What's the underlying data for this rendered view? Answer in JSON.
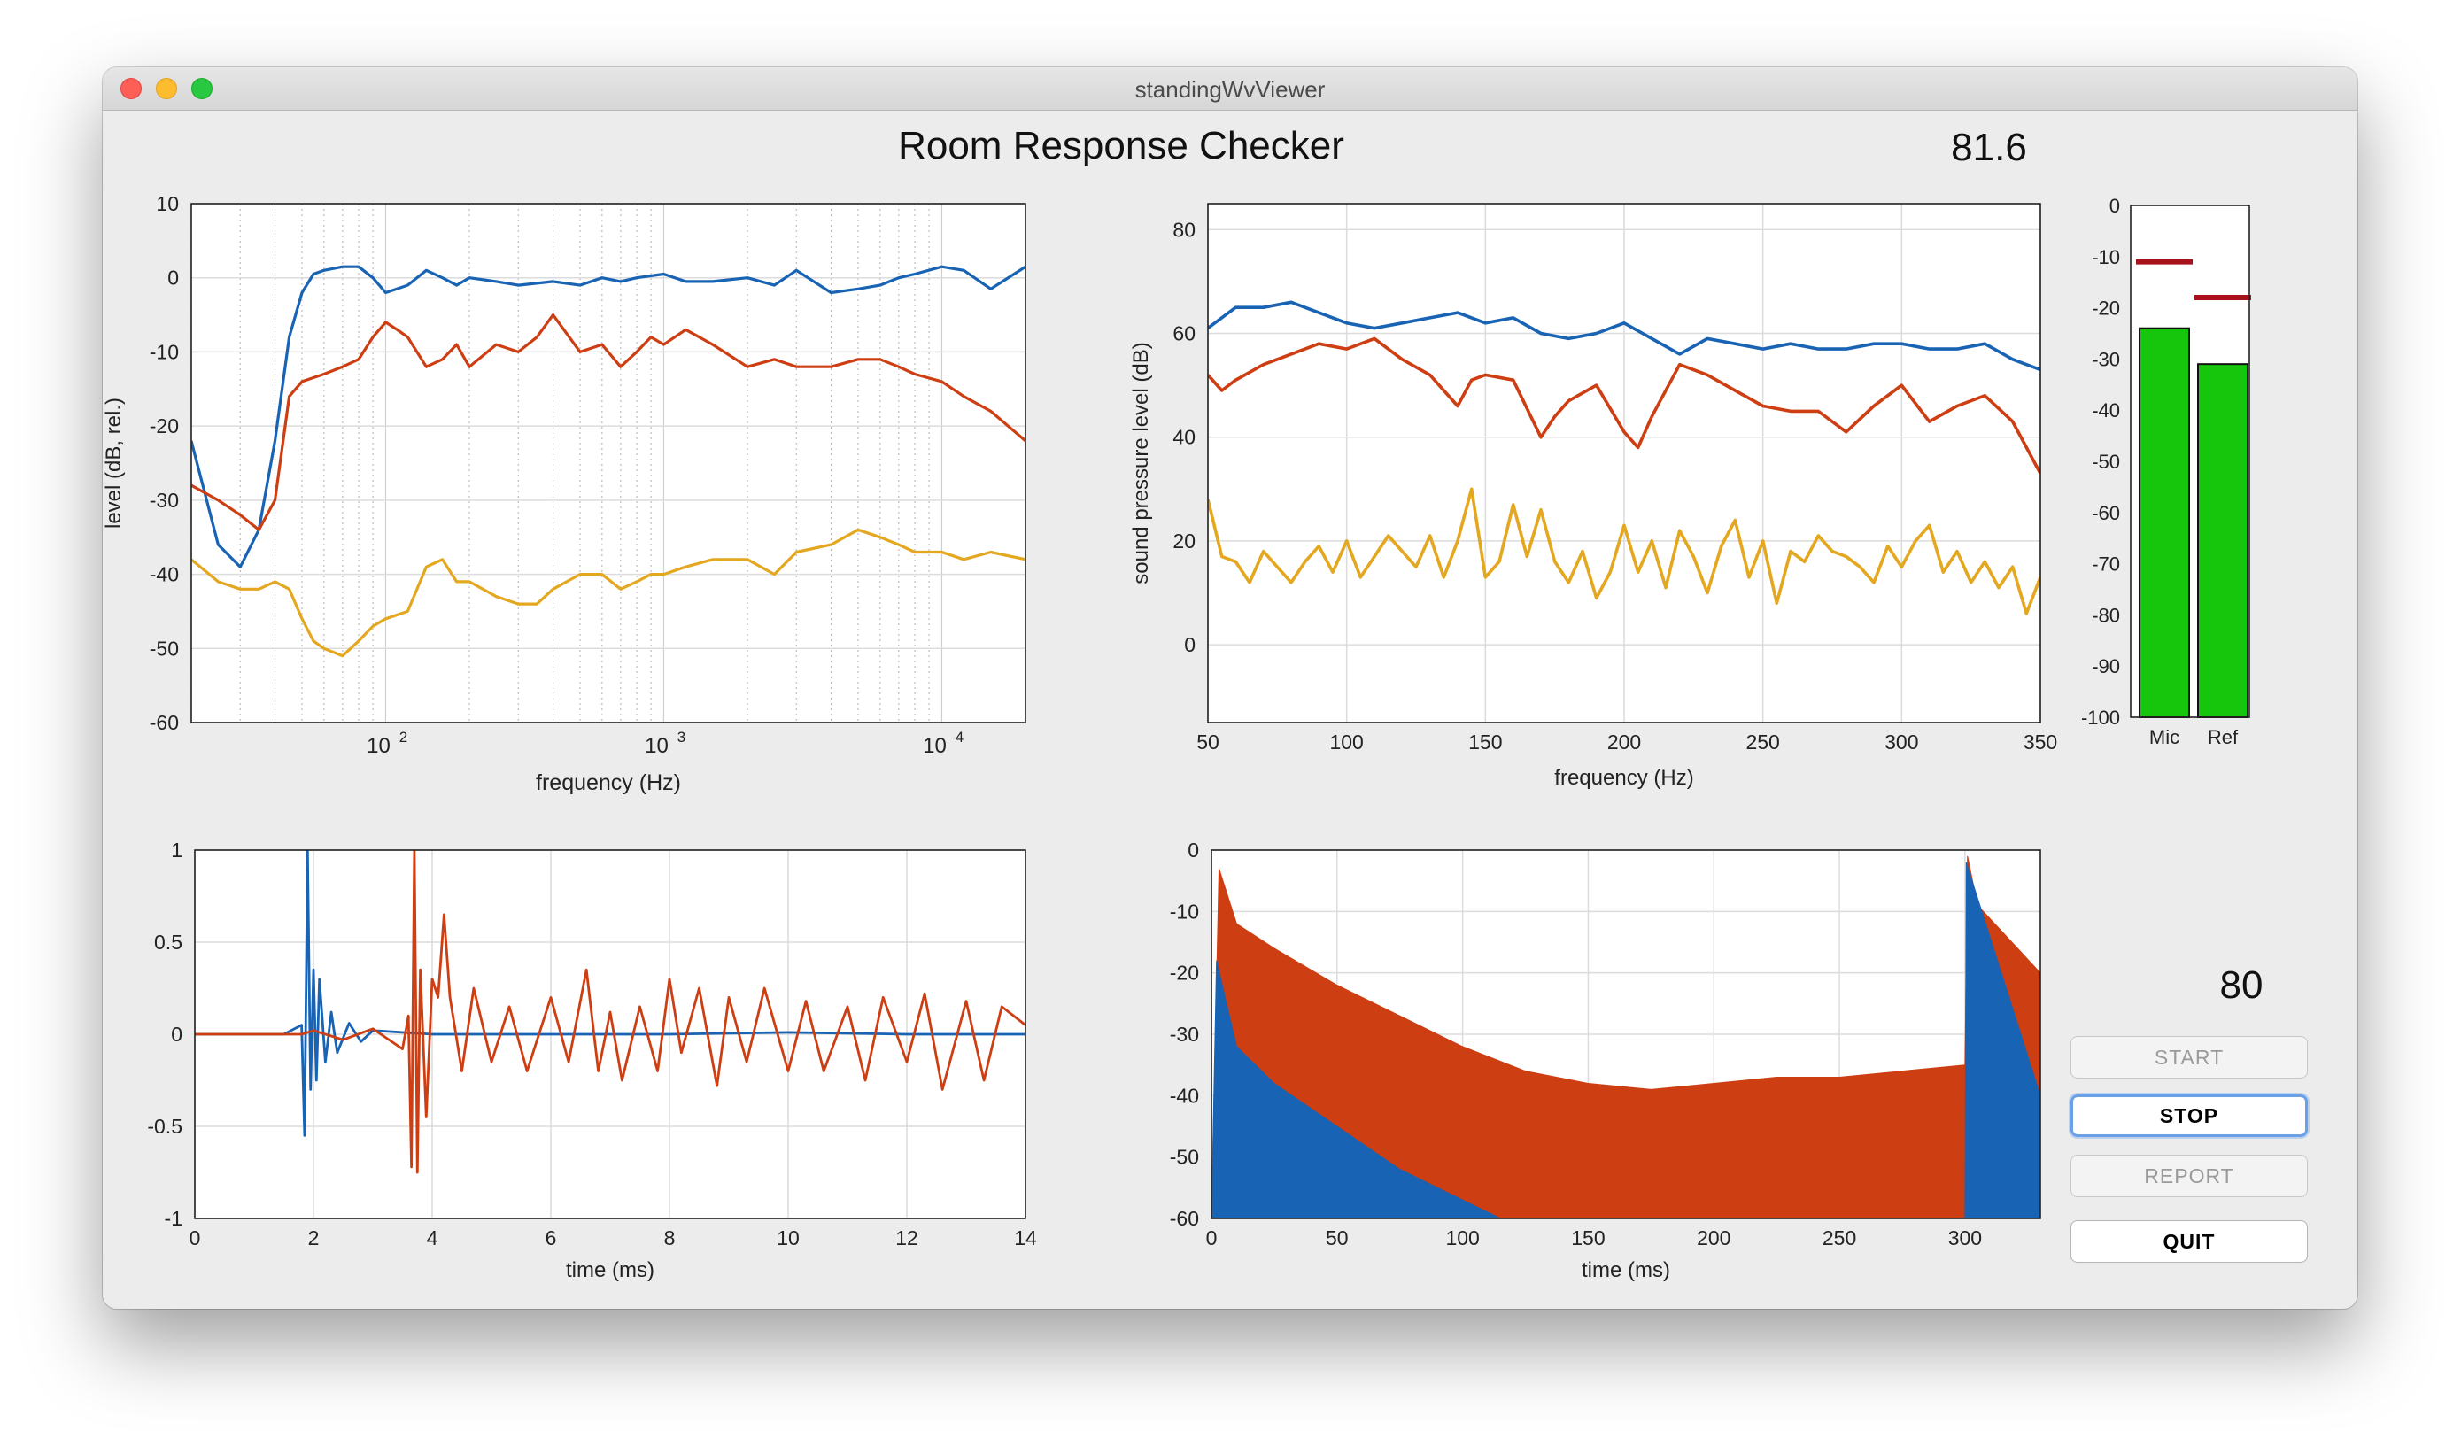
{
  "window": {
    "title": "standingWvViewer"
  },
  "app": {
    "title": "Room Response Checker",
    "level_readout": "81.6",
    "setpoint": "80"
  },
  "buttons": {
    "start": "START",
    "stop": "STOP",
    "report": "REPORT",
    "quit": "QUIT"
  },
  "colors": {
    "blue": "#1863b3",
    "red": "#cd3e13",
    "yellow": "#e4a720",
    "meter_green": "#16c60c",
    "meter_mark": "#a8121b"
  },
  "chart_data": [
    {
      "type": "line",
      "id": "frequency-response-log",
      "xlabel": "frequency (Hz)",
      "ylabel": "level (dB, rel.)",
      "xscale": "log",
      "xlim": [
        20,
        20000
      ],
      "ylim": [
        -60,
        10
      ],
      "yticks": [
        "10",
        "0",
        "-10",
        "-20",
        "-30",
        "-40",
        "-50",
        "-60"
      ],
      "xticks": [
        {
          "base": "10",
          "exp": "2"
        },
        {
          "base": "10",
          "exp": "3"
        },
        {
          "base": "10",
          "exp": "4"
        }
      ],
      "grid": true,
      "series": [
        {
          "color": "blue",
          "x": [
            20,
            25,
            30,
            35,
            40,
            45,
            50,
            55,
            60,
            70,
            80,
            90,
            100,
            120,
            140,
            160,
            180,
            200,
            250,
            300,
            400,
            500,
            600,
            700,
            800,
            1000,
            1200,
            1500,
            2000,
            2500,
            3000,
            4000,
            5000,
            6000,
            7000,
            8000,
            10000,
            12000,
            15000,
            20000
          ],
          "y": [
            -22,
            -36,
            -39,
            -34,
            -22,
            -8,
            -2,
            0.5,
            1,
            1.5,
            1.5,
            0,
            -2,
            -1,
            1,
            0,
            -1,
            0,
            -0.5,
            -1,
            -0.5,
            -1,
            0,
            -0.5,
            0,
            0.5,
            -0.5,
            -0.5,
            0,
            -1,
            1,
            -2,
            -1.5,
            -1,
            0,
            0.5,
            1.5,
            1,
            -1.5,
            1.5
          ]
        },
        {
          "color": "red",
          "x": [
            20,
            25,
            30,
            35,
            40,
            45,
            50,
            60,
            70,
            80,
            90,
            100,
            110,
            120,
            140,
            160,
            180,
            200,
            250,
            300,
            350,
            400,
            500,
            600,
            700,
            800,
            900,
            1000,
            1200,
            1500,
            2000,
            2500,
            3000,
            4000,
            5000,
            6000,
            7000,
            8000,
            10000,
            12000,
            15000,
            20000
          ],
          "y": [
            -28,
            -30,
            -32,
            -34,
            -30,
            -16,
            -14,
            -13,
            -12,
            -11,
            -8,
            -6,
            -7,
            -8,
            -12,
            -11,
            -9,
            -12,
            -9,
            -10,
            -8,
            -5,
            -10,
            -9,
            -12,
            -10,
            -8,
            -9,
            -7,
            -9,
            -12,
            -11,
            -12,
            -12,
            -11,
            -11,
            -12,
            -13,
            -14,
            -16,
            -18,
            -22
          ]
        },
        {
          "color": "yellow",
          "x": [
            20,
            25,
            30,
            35,
            40,
            45,
            50,
            55,
            60,
            70,
            80,
            90,
            100,
            120,
            140,
            160,
            180,
            200,
            250,
            300,
            350,
            400,
            500,
            600,
            700,
            800,
            900,
            1000,
            1200,
            1500,
            2000,
            2500,
            3000,
            4000,
            5000,
            6000,
            7000,
            8000,
            10000,
            12000,
            15000,
            20000
          ],
          "y": [
            -38,
            -41,
            -42,
            -42,
            -41,
            -42,
            -46,
            -49,
            -50,
            -51,
            -49,
            -47,
            -46,
            -45,
            -39,
            -38,
            -41,
            -41,
            -43,
            -44,
            -44,
            -42,
            -40,
            -40,
            -42,
            -41,
            -40,
            -40,
            -39,
            -38,
            -38,
            -40,
            -37,
            -36,
            -34,
            -35,
            -36,
            -37,
            -37,
            -38,
            -37,
            -38
          ]
        }
      ]
    },
    {
      "type": "line",
      "id": "frequency-response-spl",
      "xlabel": "frequency (Hz)",
      "ylabel": "sound pressure level (dB)",
      "xlim": [
        50,
        350
      ],
      "ylim": [
        -15,
        85
      ],
      "xticks": [
        "50",
        "100",
        "150",
        "200",
        "250",
        "300",
        "350"
      ],
      "yticks": [
        "80",
        "60",
        "40",
        "20",
        "0"
      ],
      "grid": true,
      "series": [
        {
          "color": "blue",
          "x": [
            50,
            60,
            70,
            80,
            90,
            100,
            110,
            120,
            130,
            140,
            150,
            160,
            170,
            180,
            190,
            200,
            210,
            220,
            230,
            240,
            250,
            260,
            270,
            280,
            290,
            300,
            310,
            320,
            330,
            340,
            350
          ],
          "y": [
            61,
            65,
            65,
            66,
            64,
            62,
            61,
            62,
            63,
            64,
            62,
            63,
            60,
            59,
            60,
            62,
            59,
            56,
            59,
            58,
            57,
            58,
            57,
            57,
            58,
            58,
            57,
            57,
            58,
            55,
            53
          ]
        },
        {
          "color": "red",
          "x": [
            50,
            55,
            60,
            70,
            80,
            90,
            100,
            110,
            120,
            130,
            140,
            145,
            150,
            160,
            170,
            175,
            180,
            190,
            200,
            205,
            210,
            220,
            230,
            240,
            250,
            260,
            270,
            280,
            290,
            300,
            310,
            320,
            330,
            340,
            350
          ],
          "y": [
            52,
            49,
            51,
            54,
            56,
            58,
            57,
            59,
            55,
            52,
            46,
            51,
            52,
            51,
            40,
            44,
            47,
            50,
            41,
            38,
            44,
            54,
            52,
            49,
            46,
            45,
            45,
            41,
            46,
            50,
            43,
            46,
            48,
            43,
            33
          ]
        },
        {
          "color": "yellow",
          "x": [
            50,
            55,
            60,
            65,
            70,
            75,
            80,
            85,
            90,
            95,
            100,
            105,
            110,
            115,
            120,
            125,
            130,
            135,
            140,
            145,
            150,
            155,
            160,
            165,
            170,
            175,
            180,
            185,
            190,
            195,
            200,
            205,
            210,
            215,
            220,
            225,
            230,
            235,
            240,
            245,
            250,
            255,
            260,
            265,
            270,
            275,
            280,
            285,
            290,
            295,
            300,
            305,
            310,
            315,
            320,
            325,
            330,
            335,
            340,
            345,
            350
          ],
          "y": [
            28,
            17,
            16,
            12,
            18,
            15,
            12,
            16,
            19,
            14,
            20,
            13,
            17,
            21,
            18,
            15,
            21,
            13,
            20,
            30,
            13,
            16,
            27,
            17,
            26,
            16,
            12,
            18,
            9,
            14,
            23,
            14,
            20,
            11,
            22,
            17,
            10,
            19,
            24,
            13,
            20,
            8,
            18,
            16,
            21,
            18,
            17,
            15,
            12,
            19,
            15,
            20,
            23,
            14,
            18,
            12,
            16,
            11,
            15,
            6,
            13
          ]
        }
      ]
    },
    {
      "type": "bar",
      "id": "level-meter",
      "categories": [
        "Mic",
        "Ref"
      ],
      "values": [
        -24,
        -31
      ],
      "markers": [
        -11,
        -18
      ],
      "ylim": [
        -100,
        0
      ],
      "yticks": [
        "0",
        "-10",
        "-20",
        "-30",
        "-40",
        "-50",
        "-60",
        "-70",
        "-80",
        "-90",
        "-100"
      ]
    },
    {
      "type": "line",
      "id": "impulse-response",
      "xlabel": "time (ms)",
      "xlim": [
        0,
        14
      ],
      "ylim": [
        -1,
        1
      ],
      "xticks": [
        "0",
        "2",
        "4",
        "6",
        "8",
        "10",
        "12",
        "14"
      ],
      "yticks": [
        "1",
        "0.5",
        "0",
        "-0.5",
        "-1"
      ],
      "grid": true,
      "series": [
        {
          "color": "blue",
          "x": [
            0,
            1.5,
            1.8,
            1.85,
            1.9,
            1.95,
            2.0,
            2.05,
            2.1,
            2.2,
            2.3,
            2.4,
            2.6,
            2.8,
            3.0,
            3.5,
            4,
            6,
            8,
            10,
            12,
            14
          ],
          "y": [
            0,
            0,
            0.05,
            -0.55,
            1.0,
            -0.3,
            0.35,
            -0.25,
            0.3,
            -0.15,
            0.12,
            -0.1,
            0.06,
            -0.04,
            0.02,
            0.01,
            0,
            0,
            0,
            0.01,
            0,
            0
          ]
        },
        {
          "color": "red",
          "x": [
            0,
            1.8,
            2.0,
            2.5,
            3.0,
            3.5,
            3.6,
            3.65,
            3.7,
            3.75,
            3.8,
            3.9,
            4.0,
            4.1,
            4.2,
            4.3,
            4.5,
            4.7,
            5.0,
            5.3,
            5.6,
            6.0,
            6.3,
            6.6,
            6.8,
            7.0,
            7.2,
            7.5,
            7.8,
            8.0,
            8.2,
            8.5,
            8.8,
            9.0,
            9.3,
            9.6,
            10.0,
            10.3,
            10.6,
            11.0,
            11.3,
            11.6,
            12.0,
            12.3,
            12.6,
            13.0,
            13.3,
            13.6,
            14.0
          ],
          "y": [
            0,
            0,
            0.02,
            -0.03,
            0.03,
            -0.08,
            0.1,
            -0.72,
            1.0,
            -0.75,
            0.35,
            -0.45,
            0.3,
            0.2,
            0.65,
            0.2,
            -0.2,
            0.25,
            -0.15,
            0.15,
            -0.2,
            0.2,
            -0.15,
            0.35,
            -0.2,
            0.12,
            -0.25,
            0.15,
            -0.2,
            0.3,
            -0.1,
            0.25,
            -0.28,
            0.2,
            -0.15,
            0.25,
            -0.2,
            0.18,
            -0.2,
            0.15,
            -0.25,
            0.2,
            -0.15,
            0.22,
            -0.3,
            0.18,
            -0.25,
            0.15,
            0.05
          ]
        }
      ]
    },
    {
      "type": "area",
      "id": "decay-envelope",
      "xlabel": "time (ms)",
      "xlim": [
        0,
        330
      ],
      "ylim": [
        -60,
        0
      ],
      "xticks": [
        "0",
        "50",
        "100",
        "150",
        "200",
        "250",
        "300"
      ],
      "yticks": [
        "0",
        "-10",
        "-20",
        "-30",
        "-40",
        "-50",
        "-60"
      ],
      "grid": true,
      "series": [
        {
          "color": "red",
          "x": [
            0,
            3,
            10,
            25,
            50,
            75,
            100,
            125,
            150,
            175,
            200,
            225,
            250,
            275,
            300,
            301,
            305,
            330
          ],
          "y": [
            -60,
            -3,
            -12,
            -16,
            -22,
            -27,
            -32,
            -36,
            -38,
            -39,
            -38,
            -37,
            -37,
            -36,
            -35,
            -1,
            -9,
            -20
          ]
        },
        {
          "color": "blue",
          "x": [
            0,
            2,
            10,
            25,
            50,
            75,
            100,
            115,
            125,
            300,
            300.5,
            330
          ],
          "y": [
            -60,
            -18,
            -32,
            -38,
            -45,
            -52,
            -57,
            -60,
            -60,
            -60,
            -2,
            -40
          ]
        }
      ]
    }
  ]
}
